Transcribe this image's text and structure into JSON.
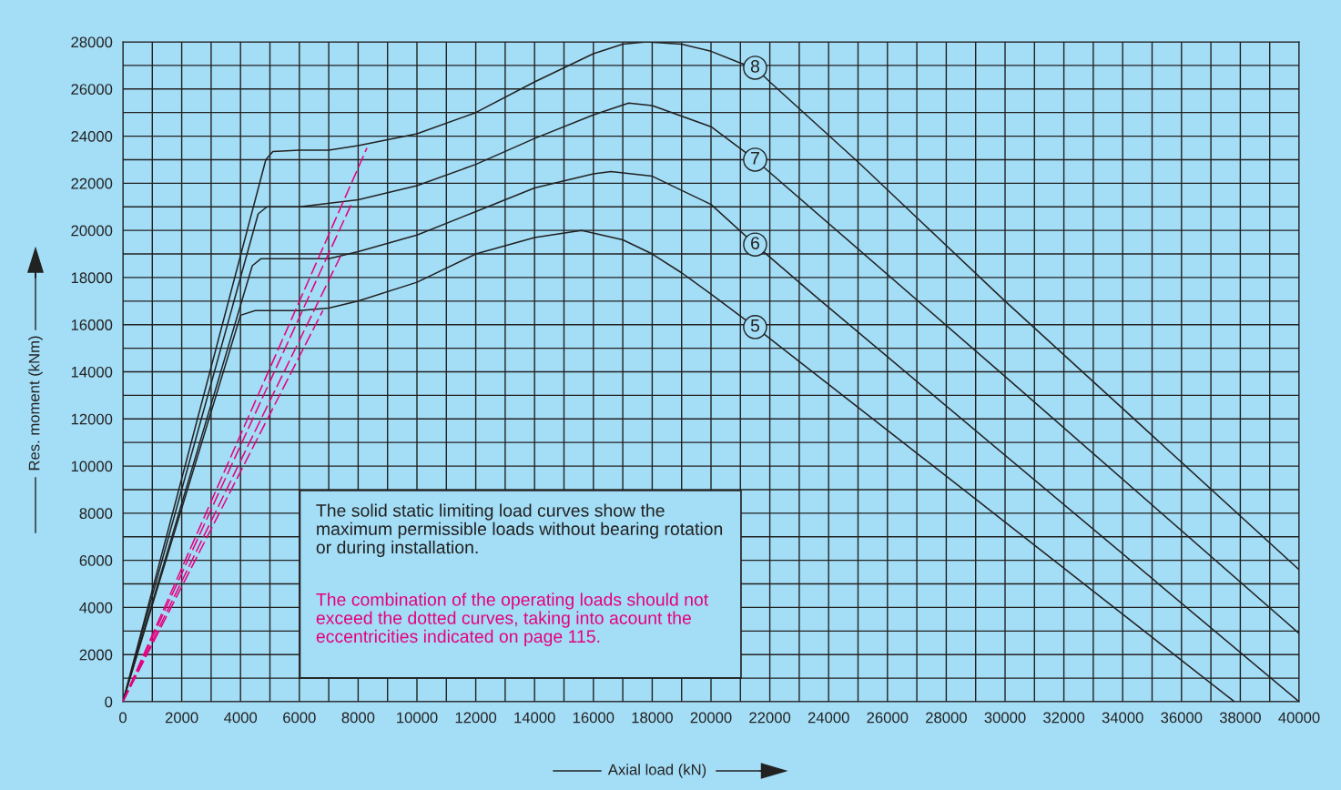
{
  "chart_data": {
    "type": "line",
    "xlabel": "Axial load (kN)",
    "ylabel": "Res. moment (kNm)",
    "xlim": [
      0,
      40000
    ],
    "ylim": [
      0,
      28000
    ],
    "xticks": [
      0,
      2000,
      4000,
      6000,
      8000,
      10000,
      12000,
      14000,
      16000,
      18000,
      20000,
      22000,
      24000,
      26000,
      28000,
      30000,
      32000,
      34000,
      36000,
      38000,
      40000
    ],
    "yticks": [
      0,
      2000,
      4000,
      6000,
      8000,
      10000,
      12000,
      14000,
      16000,
      18000,
      20000,
      22000,
      24000,
      26000,
      28000
    ],
    "grid": true,
    "legend": false,
    "marker": "none",
    "series": [
      {
        "name": "8",
        "color": "#222222",
        "line_style": "solid",
        "x": [
          0,
          4860,
          5100,
          6000,
          7000,
          8000,
          10000,
          12000,
          14000,
          16000,
          17000,
          17800,
          19000,
          20000,
          21000,
          21500,
          22000,
          25000,
          30000,
          35000,
          40000
        ],
        "values": [
          0,
          23000,
          23350,
          23400,
          23400,
          23600,
          24100,
          25000,
          26300,
          27500,
          27900,
          28000,
          27900,
          27600,
          27100,
          26900,
          26300,
          22900,
          17000,
          11300,
          5600
        ]
      },
      {
        "name": "7",
        "color": "#222222",
        "line_style": "solid",
        "x": [
          0,
          4600,
          4900,
          6000,
          8000,
          10000,
          12000,
          14000,
          16000,
          17200,
          18000,
          20000,
          21500,
          30000,
          40000
        ],
        "values": [
          0,
          20700,
          21000,
          21000,
          21300,
          21900,
          22800,
          23900,
          24900,
          25400,
          25300,
          24400,
          23000,
          13800,
          2900
        ]
      },
      {
        "name": "6",
        "color": "#222222",
        "line_style": "solid",
        "x": [
          0,
          4400,
          4700,
          6000,
          7000,
          8000,
          10000,
          12000,
          14000,
          16000,
          16600,
          18000,
          20000,
          21500,
          23600,
          40000
        ],
        "values": [
          0,
          18500,
          18800,
          18800,
          18800,
          19100,
          19800,
          20800,
          21800,
          22400,
          22500,
          22300,
          21100,
          19400,
          17150,
          0
        ]
      },
      {
        "name": "5",
        "color": "#222222",
        "line_style": "solid",
        "x": [
          0,
          4000,
          4500,
          6000,
          7000,
          8000,
          10000,
          12000,
          14000,
          15600,
          17000,
          18000,
          19000,
          20000,
          21500,
          29000,
          37800
        ],
        "values": [
          0,
          16400,
          16600,
          16600,
          16700,
          17000,
          17800,
          19000,
          19700,
          20000,
          19600,
          19000,
          18200,
          17300,
          15900,
          8600,
          0
        ]
      },
      {
        "color": "#e6007e",
        "line_style": "dashed",
        "x": [
          0,
          8300
        ],
        "values": [
          0,
          23500
        ]
      },
      {
        "color": "#e6007e",
        "line_style": "dashed",
        "x": [
          0,
          7800
        ],
        "values": [
          0,
          21200
        ]
      },
      {
        "color": "#e6007e",
        "line_style": "dashed",
        "x": [
          0,
          7400
        ],
        "values": [
          0,
          18900
        ]
      },
      {
        "color": "#e6007e",
        "line_style": "dashed",
        "x": [
          0,
          6800
        ],
        "values": [
          0,
          16600
        ]
      }
    ],
    "annotations": [
      "The solid static limiting load curves show the maximum permissible loads without bearing rotation or during installation.",
      "The combination of the operating loads should not exceed the dotted curves, taking into acount the eccentricities indicated on page 115."
    ]
  }
}
